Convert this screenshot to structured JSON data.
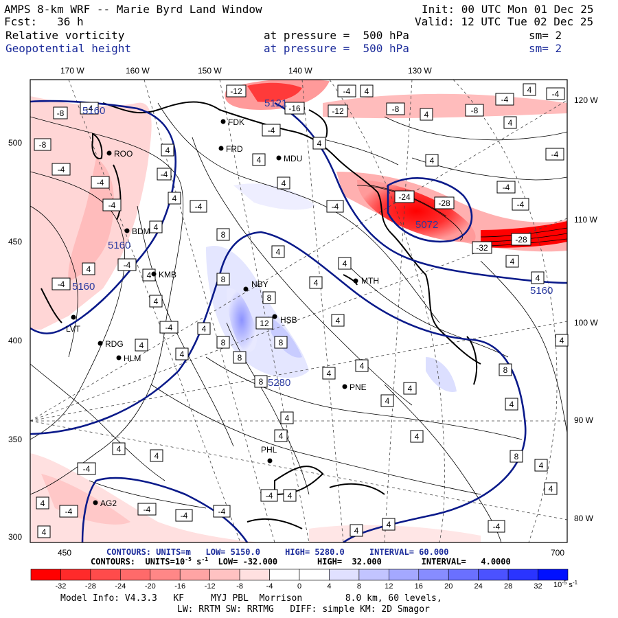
{
  "header": {
    "title": "AMPS 8-km WRF -- Marie Byrd Land Window",
    "fcst": "Fcst:   36 h",
    "init": "Init: 00 UTC Mon 01 Dec 25",
    "valid": "Valid: 12 UTC Tue 02 Dec 25",
    "field1_name": "Relative vorticity",
    "field1_level": "at pressure =  500 hPa",
    "field1_sm": "sm= 2",
    "field2_name": "Geopotential height",
    "field2_level": "at pressure =  500 hPa",
    "field2_sm": "sm= 2"
  },
  "map": {
    "top_lon_labels": [
      "170 W",
      "160 W",
      "150 W",
      "140 W",
      "130 W"
    ],
    "right_lon_labels": [
      "120 W",
      "110 W",
      "100 W",
      "90 W",
      "80 W"
    ],
    "left_y_labels": [
      "500",
      "450",
      "400",
      "350",
      "300"
    ],
    "bottom_x_labels": [
      "450",
      "700"
    ],
    "stations": [
      "ROO",
      "FDK",
      "FRD",
      "MDU",
      "BDM",
      "KMB",
      "NBY",
      "MTH",
      "HSB",
      "LVT",
      "RDG",
      "HLM",
      "PNE",
      "PHL",
      "AG2"
    ],
    "height_labels": [
      "5160",
      "5160",
      "5160",
      "5160",
      "5121",
      "5072",
      "5280"
    ],
    "vort_labels": [
      "-4",
      "-8",
      "-12",
      "-16",
      "-24",
      "-28",
      "-32",
      "4",
      "8",
      "12",
      "4",
      "8"
    ],
    "colors": {
      "height_contour": "#0a1a8a",
      "positive_fill": "#ff2020",
      "negative_fill": "#5060ff",
      "frame": "#000000"
    }
  },
  "footer": {
    "contours_height": "CONTOURS: UNITS=m   LOW= 5150.0     HIGH= 5280.0     INTERVAL= 60.000",
    "contours_vort_prefix": "CONTOURS:  UNITS=10",
    "contours_vort_exp": "-5",
    "contours_vort_unit": " s",
    "contours_vort_unit_exp": "-1",
    "contours_vort_rest": "  LOW= -32.000        HIGH=  32.000        INTERVAL=   4.0000",
    "model_info": "Model Info: V4.3.3   KF     MYJ PBL  Morrison        8.0 km, 60 levels,",
    "model_info2": "LW: RRTM SW: RRTMG   DIFF: simple KM: 2D Smagor"
  },
  "colorbar": {
    "ticks": [
      "-32",
      "-28",
      "-24",
      "-20",
      "-16",
      "-12",
      "-8",
      "-4",
      "0",
      "4",
      "8",
      "12",
      "16",
      "20",
      "24",
      "28",
      "32"
    ],
    "unit_prefix": "10",
    "unit_exp": "-5",
    "unit_suffix": " s",
    "unit_suffix_exp": "-1",
    "colors": [
      "#ff0000",
      "#ff2a2a",
      "#ff4b4b",
      "#ff6a6a",
      "#ff8787",
      "#ffa4a4",
      "#ffc2c2",
      "#ffe0e0",
      "#ffffff",
      "#ffffff",
      "#e0e0ff",
      "#c2c4ff",
      "#a4a8ff",
      "#878cff",
      "#6a70ff",
      "#4b52ff",
      "#2a34ff",
      "#0010ff"
    ]
  }
}
